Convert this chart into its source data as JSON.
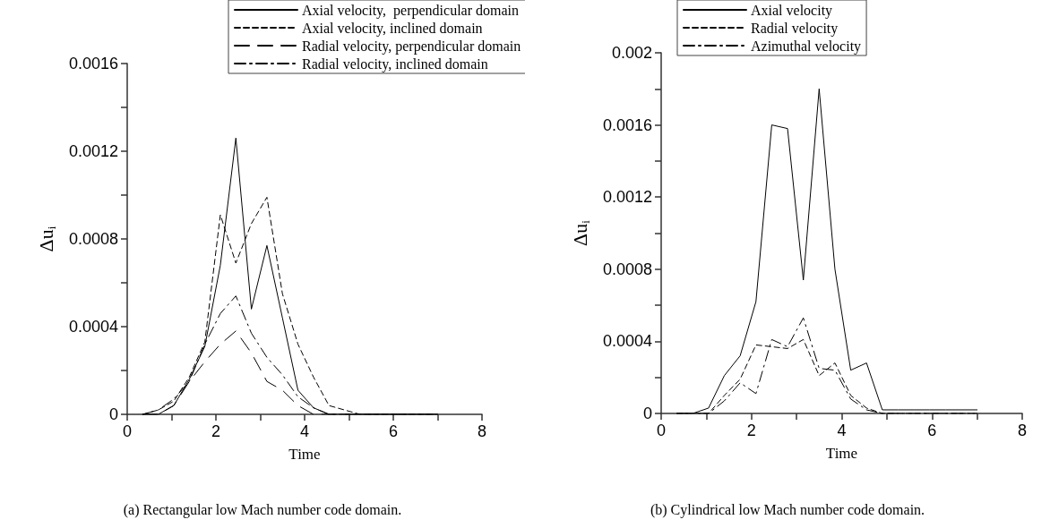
{
  "chart_data": [
    {
      "type": "line",
      "xlabel": "Time",
      "ylabel": "Δu$_{i}$",
      "x": [
        0.35,
        0.7,
        1.05,
        1.4,
        1.75,
        2.1,
        2.45,
        2.8,
        3.15,
        3.5,
        3.85,
        4.2,
        4.55,
        4.9,
        5.25,
        5.6,
        5.95,
        6.3,
        6.65,
        7.0
      ],
      "series": [
        {
          "name": "Axial velocity,  perpendicular domain",
          "color": "#000000",
          "line_style": "solid",
          "values": [
            0,
            0,
            4e-05,
            0.00016,
            0.00031,
            0.00068,
            0.00126,
            0.00048,
            0.00077,
            0.00044,
            0.00011,
            3e-05,
            0,
            0,
            0,
            0,
            0,
            0,
            0,
            0
          ]
        },
        {
          "name": "Axial velocity, inclined domain",
          "color": "#000000",
          "line_style": "dashed",
          "values": [
            0,
            2e-05,
            6e-05,
            0.00017,
            0.00033,
            0.00091,
            0.00069,
            0.00087,
            0.00099,
            0.00055,
            0.00032,
            0.00017,
            4e-05,
            2e-05,
            0,
            0,
            0,
            0,
            0,
            0
          ]
        },
        {
          "name": "Radial velocity, perpendicular domain",
          "color": "#000000",
          "line_style": "longdash",
          "values": [
            0,
            0,
            4e-05,
            0.00015,
            0.00024,
            0.00032,
            0.00038,
            0.00028,
            0.00015,
            0.00011,
            4e-05,
            0,
            0,
            0,
            0,
            0,
            0,
            0,
            0,
            0
          ]
        },
        {
          "name": "Radial velocity, inclined domain",
          "color": "#000000",
          "line_style": "dashdot",
          "values": [
            0,
            2e-05,
            7e-05,
            0.00015,
            0.00032,
            0.00046,
            0.00054,
            0.00037,
            0.00026,
            0.00018,
            8e-05,
            3e-05,
            0,
            0,
            0,
            0,
            0,
            0,
            0,
            0
          ]
        }
      ],
      "xlim": [
        0,
        8
      ],
      "xticks": [
        0,
        {
          "value": 1,
          "label": null
        },
        2,
        {
          "value": 3,
          "label": null
        },
        4,
        {
          "value": 5,
          "label": null
        },
        6,
        {
          "value": 7,
          "label": null
        },
        8
      ],
      "ylim": [
        0,
        0.0016
      ],
      "yticks": [
        0,
        {
          "value": 0.0002,
          "label": null
        },
        0.0004,
        {
          "value": 0.0006,
          "label": null
        },
        0.0008,
        {
          "value": 0.001,
          "label": null
        },
        0.0012,
        {
          "value": 0.0014,
          "label": null
        },
        0.0016
      ],
      "grid": false,
      "legend": "top",
      "marker": "none",
      "annotations": [
        "(a) Rectangular low Mach number code domain."
      ]
    },
    {
      "type": "line",
      "xlabel": "Time",
      "ylabel": "Δu$_{i}$",
      "x": [
        0.35,
        0.7,
        1.05,
        1.4,
        1.75,
        2.1,
        2.45,
        2.8,
        3.15,
        3.5,
        3.85,
        4.2,
        4.55,
        4.9,
        5.25,
        5.6,
        5.95,
        6.3,
        6.65,
        7.0
      ],
      "series": [
        {
          "name": "Axial velocity",
          "color": "#000000",
          "line_style": "solid",
          "values": [
            0,
            0,
            3e-05,
            0.00021,
            0.00032,
            0.00062,
            0.0016,
            0.00158,
            0.00074,
            0.0018,
            0.0008,
            0.00024,
            0.00028,
            2e-05,
            2e-05,
            2e-05,
            2e-05,
            2e-05,
            2e-05,
            2e-05
          ]
        },
        {
          "name": "Radial velocity",
          "color": "#000000",
          "line_style": "dashed",
          "values": [
            0,
            0,
            0,
            0.0001,
            0.00019,
            0.00038,
            0.00037,
            0.00036,
            0.00041,
            0.00021,
            0.00028,
            0.0001,
            3e-05,
            0,
            0,
            0,
            0,
            0,
            0,
            0
          ]
        },
        {
          "name": "Azimuthal velocity",
          "color": "#000000",
          "line_style": "dashdot",
          "values": [
            0,
            0,
            0,
            7e-05,
            0.00017,
            0.00011,
            0.00041,
            0.00037,
            0.00053,
            0.00025,
            0.00024,
            8e-05,
            2e-05,
            0,
            0,
            0,
            0,
            0,
            0,
            0
          ]
        }
      ],
      "xlim": [
        0,
        8
      ],
      "xticks": [
        0,
        {
          "value": 1,
          "label": null
        },
        2,
        {
          "value": 3,
          "label": null
        },
        4,
        {
          "value": 5,
          "label": null
        },
        6,
        {
          "value": 7,
          "label": null
        },
        8
      ],
      "ylim": [
        0,
        0.002
      ],
      "yticks": [
        0,
        {
          "value": 0.0002,
          "label": null
        },
        0.0004,
        {
          "value": 0.0006,
          "label": null
        },
        0.0008,
        {
          "value": 0.001,
          "label": null
        },
        0.0012,
        {
          "value": 0.0014,
          "label": null
        },
        0.0016,
        {
          "value": 0.0018,
          "label": null
        },
        0.002
      ],
      "grid": false,
      "legend": "top",
      "marker": "none",
      "annotations": [
        "(b) Cylindrical low Mach number code domain."
      ]
    }
  ]
}
